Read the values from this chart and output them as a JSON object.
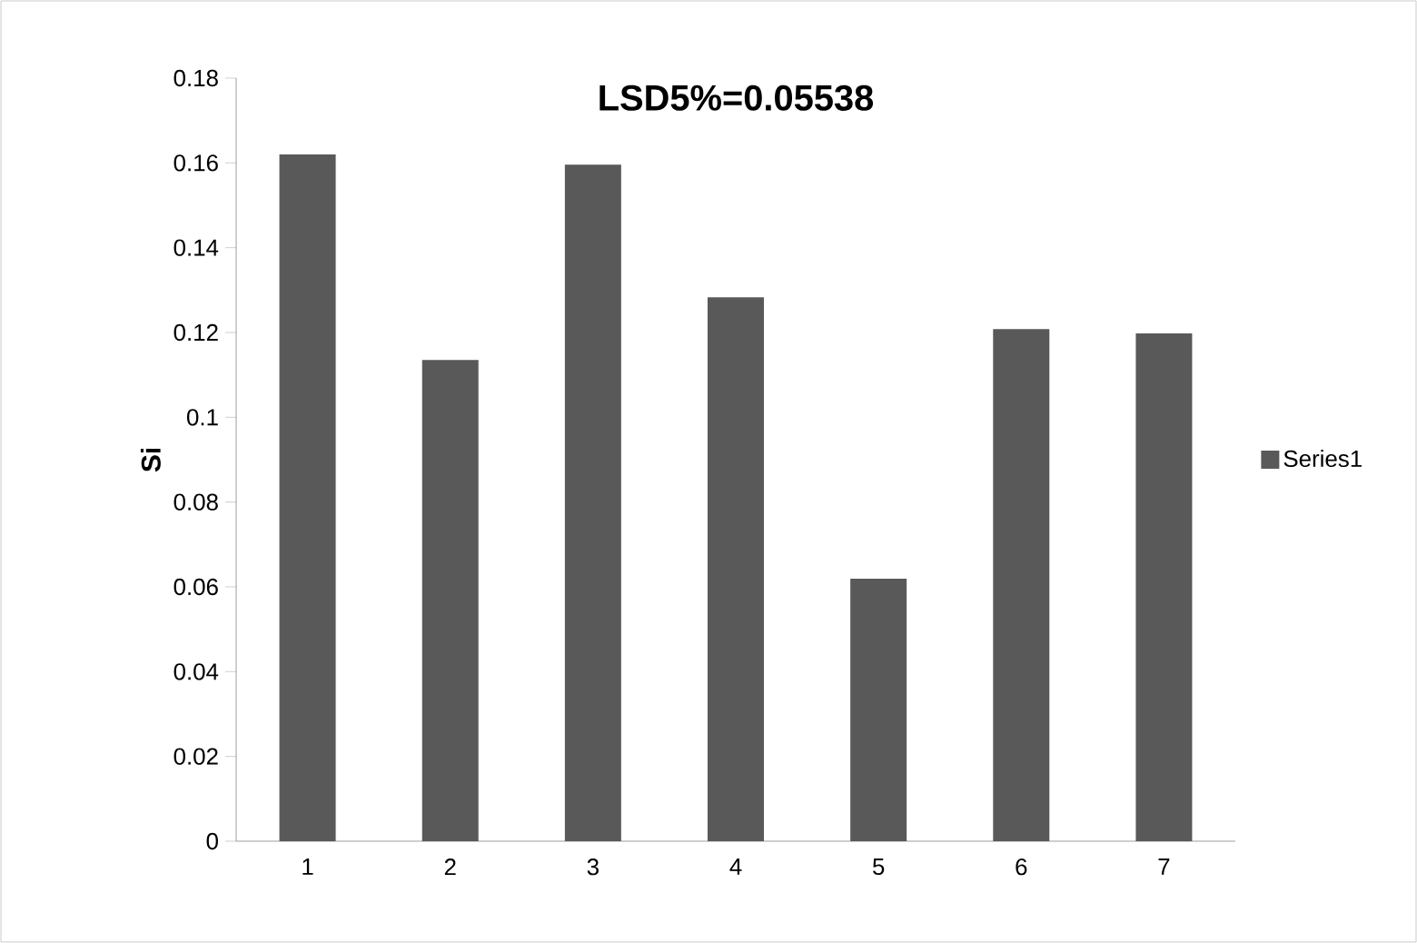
{
  "chart_data": {
    "type": "bar",
    "title": "LSD5%=0.05538",
    "ylabel": "Si",
    "categories": [
      "1",
      "2",
      "3",
      "4",
      "5",
      "6",
      "7"
    ],
    "series": [
      {
        "name": "Series1",
        "color": "#595959",
        "values": [
          0.162,
          0.1135,
          0.1596,
          0.1283,
          0.0619,
          0.1208,
          0.1198
        ]
      }
    ],
    "ylim": [
      0,
      0.18
    ],
    "yticks": [
      0,
      0.02,
      0.04,
      0.06,
      0.08,
      0.1,
      0.12,
      0.14,
      0.16,
      0.18
    ],
    "grid": false,
    "legend": "right"
  }
}
